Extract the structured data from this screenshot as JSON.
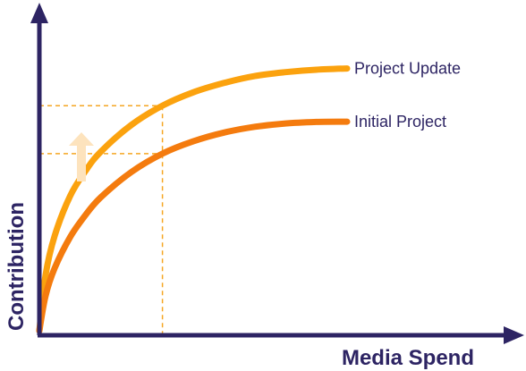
{
  "colors": {
    "axis": "#2d2463",
    "label_text": "#2d2463",
    "guide": "#f5a623",
    "arrow": "#fde3bd",
    "series_update": "#fba20e",
    "series_initial": "#f47b0e"
  },
  "chart_data": {
    "type": "line",
    "title": "",
    "xlabel": "Media Spend",
    "ylabel": "Contribution",
    "xlim": [
      0,
      100
    ],
    "ylim": [
      0,
      100
    ],
    "grid": false,
    "legend": "inline-right",
    "series": [
      {
        "name": "Project Update",
        "color": "#fba20e",
        "x": [
          0,
          2,
          5,
          10,
          15,
          20,
          30,
          40,
          50,
          60,
          70,
          80,
          90,
          100
        ],
        "y": [
          0,
          18.3,
          31.5,
          44.6,
          52.9,
          59.3,
          68.2,
          74.5,
          78.9,
          82.0,
          84.3,
          85.6,
          86.4,
          86.8
        ]
      },
      {
        "name": "Initial Project",
        "color": "#f47b0e",
        "x": [
          0,
          2,
          5,
          10,
          15,
          20,
          30,
          40,
          50,
          60,
          70,
          80,
          90,
          100
        ],
        "y": [
          0,
          11.5,
          20.8,
          31.0,
          38.3,
          44.2,
          52.6,
          58.6,
          62.7,
          65.6,
          67.5,
          68.6,
          69.1,
          69.2
        ]
      }
    ],
    "guides": {
      "x": 40,
      "y_levels": [
        74.5,
        58.6
      ]
    },
    "annotation": "up-arrow"
  }
}
